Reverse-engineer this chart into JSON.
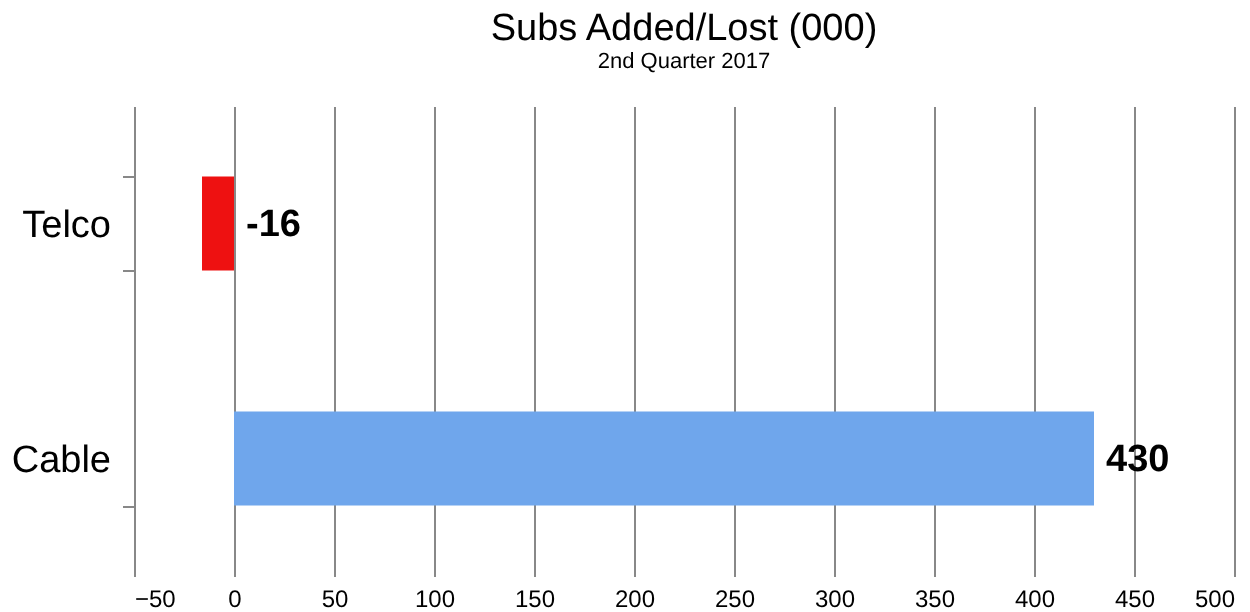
{
  "chart_data": {
    "type": "bar",
    "orientation": "horizontal",
    "title": "Subs Added/Lost (000)",
    "subtitle": "2nd Quarter 2017",
    "categories": [
      "Telco",
      "Cable"
    ],
    "values": [
      -16,
      430
    ],
    "colors": [
      "#ee1111",
      "#6fa6ec"
    ],
    "xlim": [
      -50,
      500
    ],
    "xticks": [
      -50,
      0,
      50,
      100,
      150,
      200,
      250,
      300,
      350,
      400,
      450,
      500
    ],
    "grid": "x",
    "data_labels": true
  }
}
